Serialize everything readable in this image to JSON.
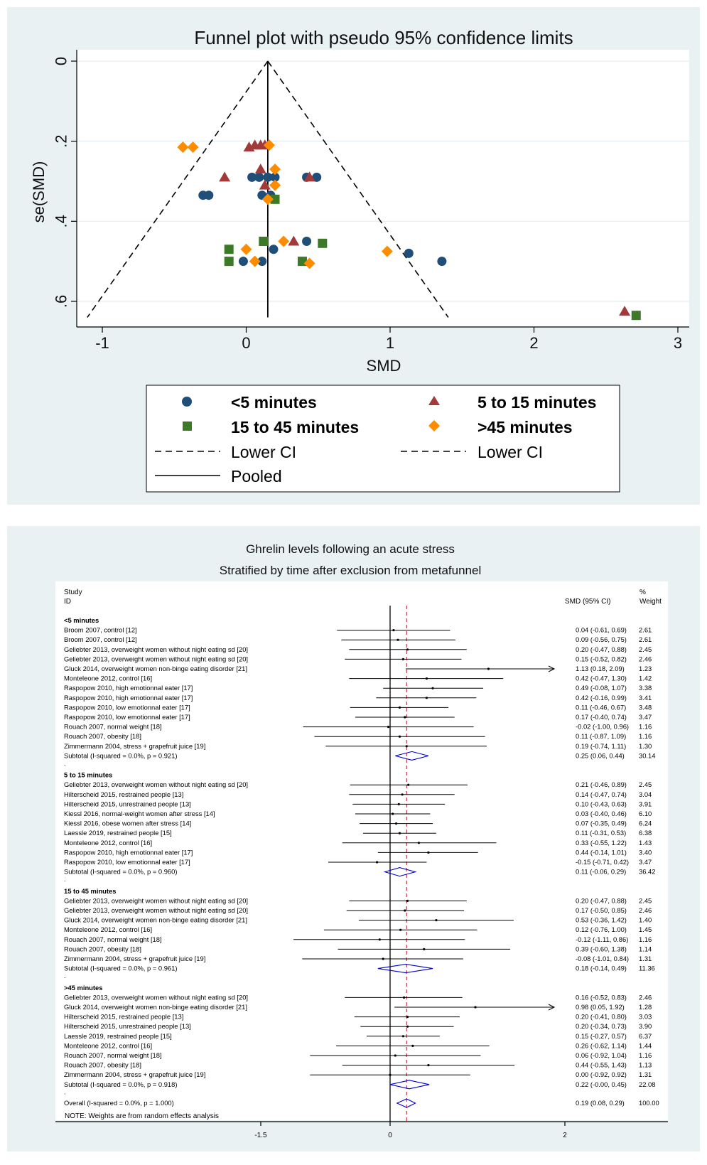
{
  "chart_data": [
    {
      "type": "scatter",
      "title": "Funnel plot with pseudo 95% confidence limits",
      "xlabel": "SMD",
      "ylabel": "se(SMD)",
      "xlim": [
        -1.1,
        3.05
      ],
      "ylim": [
        0,
        0.66
      ],
      "y_reversed": true,
      "x_ticks": [
        "-1",
        "0",
        "1",
        "2",
        "3"
      ],
      "y_ticks": [
        "0",
        ".2",
        ".4",
        ".6"
      ],
      "grid": true,
      "pooled_smd": 0.15,
      "pseudo_ci_lines": true,
      "legend_position": "below",
      "legend": [
        {
          "name": "<5 minutes",
          "symbol": "circle",
          "color": "#1f4e79"
        },
        {
          "name": "5 to 15 minutes",
          "symbol": "triangle",
          "color": "#a33a3a"
        },
        {
          "name": "15 to 45 minutes",
          "symbol": "square",
          "color": "#3d7a28"
        },
        {
          "name": ">45 minutes",
          "symbol": "diamond",
          "color": "#ff8c00"
        },
        {
          "name": "Lower CI",
          "symbol": "dash"
        },
        {
          "name": "Lower CI",
          "symbol": "dash"
        },
        {
          "name": "Pooled",
          "symbol": "line"
        }
      ],
      "series": [
        {
          "symbol": "circle",
          "color": "#1f4e79",
          "points": [
            [
              0.04,
              0.29
            ],
            [
              0.09,
              0.29
            ],
            [
              0.2,
              0.29
            ],
            [
              0.15,
              0.29
            ],
            [
              1.13,
              0.48
            ],
            [
              0.42,
              0.45
            ],
            [
              0.49,
              0.29
            ],
            [
              0.42,
              0.29
            ],
            [
              0.11,
              0.335
            ],
            [
              0.17,
              0.335
            ],
            [
              -0.02,
              0.5
            ],
            [
              0.11,
              0.5
            ],
            [
              0.19,
              0.47
            ],
            [
              -0.3,
              0.335
            ],
            [
              -0.26,
              0.335
            ],
            [
              1.36,
              0.5
            ]
          ]
        },
        {
          "symbol": "triangle",
          "color": "#a33a3a",
          "points": [
            [
              0.02,
              0.215
            ],
            [
              0.06,
              0.21
            ],
            [
              0.1,
              0.21
            ],
            [
              0.13,
              0.21
            ],
            [
              -0.15,
              0.29
            ],
            [
              0.1,
              0.27
            ],
            [
              0.33,
              0.45
            ],
            [
              0.44,
              0.29
            ],
            [
              0.13,
              0.31
            ],
            [
              2.63,
              0.625
            ]
          ]
        },
        {
          "symbol": "square",
          "color": "#3d7a28",
          "points": [
            [
              0.2,
              0.345
            ],
            [
              0.12,
              0.45
            ],
            [
              -0.12,
              0.47
            ],
            [
              -0.12,
              0.5
            ],
            [
              0.39,
              0.5
            ],
            [
              0.53,
              0.455
            ],
            [
              2.71,
              0.635
            ]
          ]
        },
        {
          "symbol": "diamond",
          "color": "#ff8c00",
          "points": [
            [
              -0.44,
              0.215
            ],
            [
              -0.37,
              0.215
            ],
            [
              0.16,
              0.21
            ],
            [
              0.2,
              0.27
            ],
            [
              0.2,
              0.31
            ],
            [
              0.15,
              0.345
            ],
            [
              0.26,
              0.45
            ],
            [
              0.06,
              0.5
            ],
            [
              0.0,
              0.47
            ],
            [
              0.44,
              0.505
            ],
            [
              0.98,
              0.475
            ]
          ]
        }
      ]
    },
    {
      "type": "table",
      "title": "Ghrelin levels following an acute stress",
      "subtitle": "Stratified by time after exclusion from metafunnel",
      "header": {
        "study_1": "Study",
        "study_2": "ID",
        "smd": "SMD (95% CI)",
        "weight_1": "%",
        "weight_2": "Weight"
      },
      "x_ticks": [
        "-1.5",
        "0",
        "2"
      ],
      "reference_line": 0.19,
      "note": "NOTE: Weights are from random effects analysis",
      "groups": [
        {
          "label": "<5 minutes",
          "studies": [
            {
              "id": "Broom 2007, control [12]",
              "smd": 0.04,
              "lo": -0.61,
              "hi": 0.69,
              "text": "0.04 (-0.61, 0.69)",
              "weight": "2.61"
            },
            {
              "id": "Broom 2007, control [12]",
              "smd": 0.09,
              "lo": -0.56,
              "hi": 0.75,
              "text": "0.09 (-0.56, 0.75)",
              "weight": "2.61"
            },
            {
              "id": "Geliebter 2013, overweight women without night eating sd [20]",
              "smd": 0.2,
              "lo": -0.47,
              "hi": 0.88,
              "text": "0.20 (-0.47, 0.88)",
              "weight": "2.45"
            },
            {
              "id": "Geliebter 2013, overweight women without night eating sd [20]",
              "smd": 0.15,
              "lo": -0.52,
              "hi": 0.82,
              "text": "0.15 (-0.52, 0.82)",
              "weight": "2.46"
            },
            {
              "id": "Gluck 2014, overweight women non-binge eating disorder [21]",
              "smd": 1.13,
              "lo": 0.18,
              "hi": 2.09,
              "text": "1.13 (0.18, 2.09)",
              "weight": "1.23"
            },
            {
              "id": "Monteleone 2012, control [16]",
              "smd": 0.42,
              "lo": -0.47,
              "hi": 1.3,
              "text": "0.42 (-0.47, 1.30)",
              "weight": "1.42"
            },
            {
              "id": "Raspopow 2010, high emotionnal eater [17]",
              "smd": 0.49,
              "lo": -0.08,
              "hi": 1.07,
              "text": "0.49 (-0.08, 1.07)",
              "weight": "3.38"
            },
            {
              "id": "Raspopow 2010, high emotionnal eater [17]",
              "smd": 0.42,
              "lo": -0.16,
              "hi": 0.99,
              "text": "0.42 (-0.16, 0.99)",
              "weight": "3.41"
            },
            {
              "id": "Raspopow 2010, low emotionnal eater [17]",
              "smd": 0.11,
              "lo": -0.46,
              "hi": 0.67,
              "text": "0.11 (-0.46, 0.67)",
              "weight": "3.48"
            },
            {
              "id": "Raspopow 2010, low emotionnal eater [17]",
              "smd": 0.17,
              "lo": -0.4,
              "hi": 0.74,
              "text": "0.17 (-0.40, 0.74)",
              "weight": "3.47"
            },
            {
              "id": "Rouach 2007, normal weight [18]",
              "smd": -0.02,
              "lo": -1.0,
              "hi": 0.96,
              "text": "-0.02 (-1.00, 0.96)",
              "weight": "1.16"
            },
            {
              "id": "Rouach 2007, obesity [18]",
              "smd": 0.11,
              "lo": -0.87,
              "hi": 1.09,
              "text": "0.11 (-0.87, 1.09)",
              "weight": "1.16"
            },
            {
              "id": "Zimmermann 2004, stress + grapefruit juice [19]",
              "smd": 0.19,
              "lo": -0.74,
              "hi": 1.11,
              "text": "0.19 (-0.74, 1.11)",
              "weight": "1.30"
            }
          ],
          "subtotal": {
            "label": "Subtotal  (I-squared = 0.0%, p = 0.921)",
            "smd": 0.25,
            "lo": 0.06,
            "hi": 0.44,
            "text": "0.25 (0.06, 0.44)",
            "weight": "30.14"
          }
        },
        {
          "label": "5 to 15 minutes",
          "studies": [
            {
              "id": "Geliebter 2013, overweight women without night eating sd [20]",
              "smd": 0.21,
              "lo": -0.46,
              "hi": 0.89,
              "text": "0.21 (-0.46, 0.89)",
              "weight": "2.45"
            },
            {
              "id": "Hilterscheid 2015, restrained people [13]",
              "smd": 0.14,
              "lo": -0.47,
              "hi": 0.74,
              "text": "0.14 (-0.47, 0.74)",
              "weight": "3.04"
            },
            {
              "id": "Hilterscheid 2015, unrestrained people [13]",
              "smd": 0.1,
              "lo": -0.43,
              "hi": 0.63,
              "text": "0.10 (-0.43, 0.63)",
              "weight": "3.91"
            },
            {
              "id": "Kiessl 2016, normal-weight women after stress [14]",
              "smd": 0.03,
              "lo": -0.4,
              "hi": 0.46,
              "text": "0.03 (-0.40, 0.46)",
              "weight": "6.10"
            },
            {
              "id": "Kiessl 2016, obese women after stress [14]",
              "smd": 0.07,
              "lo": -0.35,
              "hi": 0.49,
              "text": "0.07 (-0.35, 0.49)",
              "weight": "6.24"
            },
            {
              "id": "Laessle 2019, restrained people [15]",
              "smd": 0.11,
              "lo": -0.31,
              "hi": 0.53,
              "text": "0.11 (-0.31, 0.53)",
              "weight": "6.38"
            },
            {
              "id": "Monteleone 2012, control [16]",
              "smd": 0.33,
              "lo": -0.55,
              "hi": 1.22,
              "text": "0.33 (-0.55, 1.22)",
              "weight": "1.43"
            },
            {
              "id": "Raspopow 2010, high emotionnal eater [17]",
              "smd": 0.44,
              "lo": -0.14,
              "hi": 1.01,
              "text": "0.44 (-0.14, 1.01)",
              "weight": "3.40"
            },
            {
              "id": "Raspopow 2010, low emotionnal eater [17]",
              "smd": -0.15,
              "lo": -0.71,
              "hi": 0.42,
              "text": "-0.15 (-0.71, 0.42)",
              "weight": "3.47"
            }
          ],
          "subtotal": {
            "label": "Subtotal  (I-squared = 0.0%, p = 0.960)",
            "smd": 0.11,
            "lo": -0.06,
            "hi": 0.29,
            "text": "0.11 (-0.06, 0.29)",
            "weight": "36.42"
          }
        },
        {
          "label": "15 to 45 minutes",
          "studies": [
            {
              "id": "Geliebter 2013, overweight women without night eating sd [20]",
              "smd": 0.2,
              "lo": -0.47,
              "hi": 0.88,
              "text": "0.20 (-0.47, 0.88)",
              "weight": "2.45"
            },
            {
              "id": "Geliebter 2013, overweight women without night eating sd [20]",
              "smd": 0.17,
              "lo": -0.5,
              "hi": 0.85,
              "text": "0.17 (-0.50, 0.85)",
              "weight": "2.46"
            },
            {
              "id": "Gluck 2014, overweight women non-binge eating disorder [21]",
              "smd": 0.53,
              "lo": -0.36,
              "hi": 1.42,
              "text": "0.53 (-0.36, 1.42)",
              "weight": "1.40"
            },
            {
              "id": "Monteleone 2012, control [16]",
              "smd": 0.12,
              "lo": -0.76,
              "hi": 1.0,
              "text": "0.12 (-0.76, 1.00)",
              "weight": "1.45"
            },
            {
              "id": "Rouach 2007, normal weight [18]",
              "smd": -0.12,
              "lo": -1.11,
              "hi": 0.86,
              "text": "-0.12 (-1.11, 0.86)",
              "weight": "1.16"
            },
            {
              "id": "Rouach 2007, obesity [18]",
              "smd": 0.39,
              "lo": -0.6,
              "hi": 1.38,
              "text": "0.39 (-0.60, 1.38)",
              "weight": "1.14"
            },
            {
              "id": "Zimmermann 2004, stress + grapefruit juice [19]",
              "smd": -0.08,
              "lo": -1.01,
              "hi": 0.84,
              "text": "-0.08 (-1.01, 0.84)",
              "weight": "1.31"
            }
          ],
          "subtotal": {
            "label": "Subtotal  (I-squared = 0.0%, p = 0.961)",
            "smd": 0.18,
            "lo": -0.14,
            "hi": 0.49,
            "text": "0.18 (-0.14, 0.49)",
            "weight": "11.36"
          }
        },
        {
          "label": ">45 minutes",
          "studies": [
            {
              "id": "Geliebter 2013, overweight women without night eating sd [20]",
              "smd": 0.16,
              "lo": -0.52,
              "hi": 0.83,
              "text": "0.16 (-0.52, 0.83)",
              "weight": "2.46"
            },
            {
              "id": "Gluck 2014, overweight women non-binge eating disorder [21]",
              "smd": 0.98,
              "lo": 0.05,
              "hi": 1.92,
              "text": "0.98 (0.05, 1.92)",
              "weight": "1.28"
            },
            {
              "id": "Hilterscheid 2015, restrained people [13]",
              "smd": 0.2,
              "lo": -0.41,
              "hi": 0.8,
              "text": "0.20 (-0.41, 0.80)",
              "weight": "3.03"
            },
            {
              "id": "Hilterscheid 2015, unrestrained people [13]",
              "smd": 0.2,
              "lo": -0.34,
              "hi": 0.73,
              "text": "0.20 (-0.34, 0.73)",
              "weight": "3.90"
            },
            {
              "id": "Laessle 2019, restrained people [15]",
              "smd": 0.15,
              "lo": -0.27,
              "hi": 0.57,
              "text": "0.15 (-0.27, 0.57)",
              "weight": "6.37"
            },
            {
              "id": "Monteleone 2012, control [16]",
              "smd": 0.26,
              "lo": -0.62,
              "hi": 1.14,
              "text": "0.26 (-0.62, 1.14)",
              "weight": "1.44"
            },
            {
              "id": "Rouach 2007, normal weight [18]",
              "smd": 0.06,
              "lo": -0.92,
              "hi": 1.04,
              "text": "0.06 (-0.92, 1.04)",
              "weight": "1.16"
            },
            {
              "id": "Rouach 2007, obesity [18]",
              "smd": 0.44,
              "lo": -0.55,
              "hi": 1.43,
              "text": "0.44 (-0.55, 1.43)",
              "weight": "1.13"
            },
            {
              "id": "Zimmermann 2004, stress + grapefruit juice [19]",
              "smd": 0.0,
              "lo": -0.92,
              "hi": 0.92,
              "text": "0.00 (-0.92, 0.92)",
              "weight": "1.31"
            }
          ],
          "subtotal": {
            "label": "Subtotal  (I-squared = 0.0%, p = 0.918)",
            "smd": 0.22,
            "lo": -0.0,
            "hi": 0.45,
            "text": "0.22 (-0.00, 0.45)",
            "weight": "22.08"
          }
        }
      ],
      "overall": {
        "label": "Overall  (I-squared = 0.0%, p = 1.000)",
        "smd": 0.19,
        "lo": 0.08,
        "hi": 0.29,
        "text": "0.19 (0.08, 0.29)",
        "weight": "100.00"
      }
    }
  ]
}
